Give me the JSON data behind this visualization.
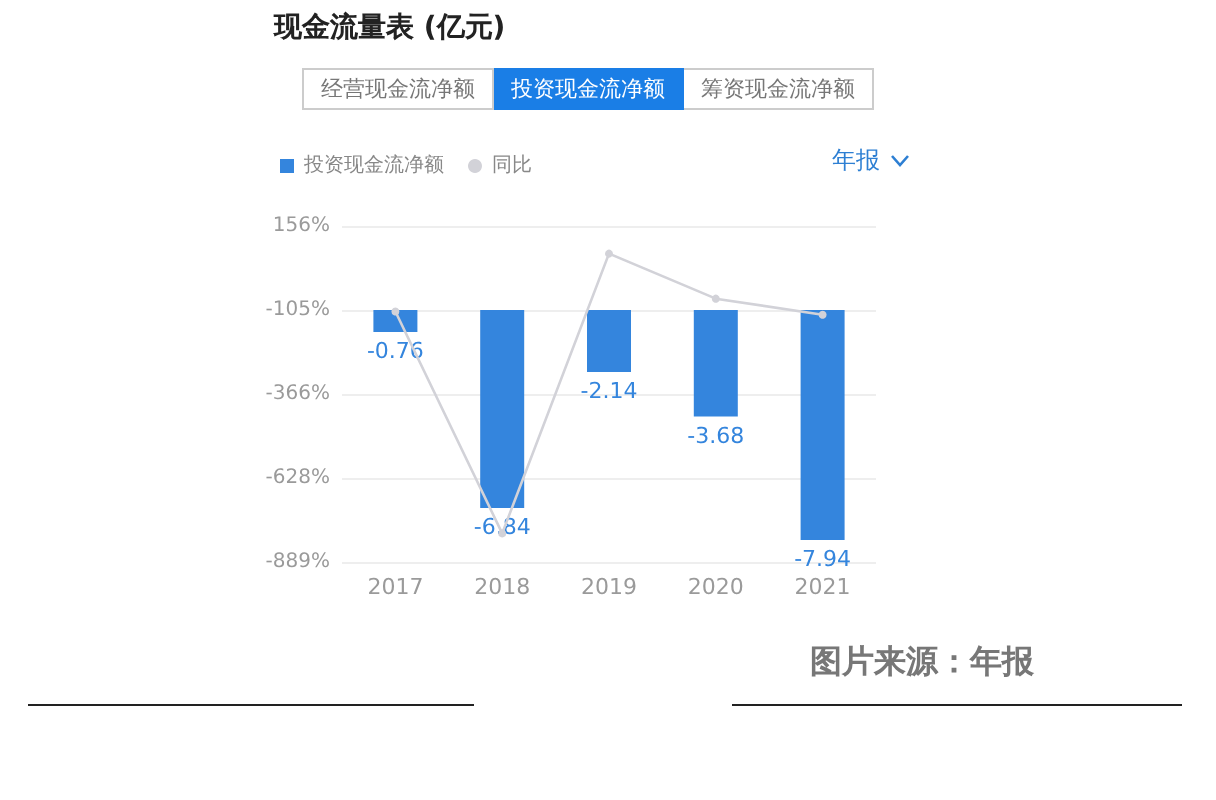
{
  "chart_data": {
    "type": "bar",
    "title": "现金流量表 (亿元)",
    "categories": [
      "2017",
      "2018",
      "2019",
      "2020",
      "2021"
    ],
    "series": [
      {
        "name": "投资现金流净额",
        "axis": "y2",
        "color": "#3485dd",
        "values": [
          -0.76,
          -6.84,
          -2.14,
          -3.68,
          -7.94
        ],
        "value_labels": [
          "-0.76",
          "-6.84",
          "-2.14",
          "-3.68",
          "-7.94"
        ]
      },
      {
        "name": "同比",
        "type": "line",
        "color": "#d2d2d8",
        "values": [
          -110,
          -800,
          70,
          -70,
          -120
        ]
      }
    ],
    "ylim": [
      -889,
      156
    ],
    "yticks": [
      {
        "value": -889,
        "label": "-889%"
      },
      {
        "value": -628,
        "label": "-628%"
      },
      {
        "value": -366,
        "label": "-366%"
      },
      {
        "value": -105,
        "label": "-105%"
      },
      {
        "value": 156,
        "label": "156%"
      }
    ],
    "y2lim": [
      -8.7,
      2.9
    ],
    "tick_labels": "xy",
    "grid": "y",
    "legend": "top left",
    "marker": "circle",
    "annotations": [
      "经营现金流净额",
      "投资现金流净额",
      "筹资现金流净额",
      "年报",
      "图片来源：年报"
    ]
  }
}
